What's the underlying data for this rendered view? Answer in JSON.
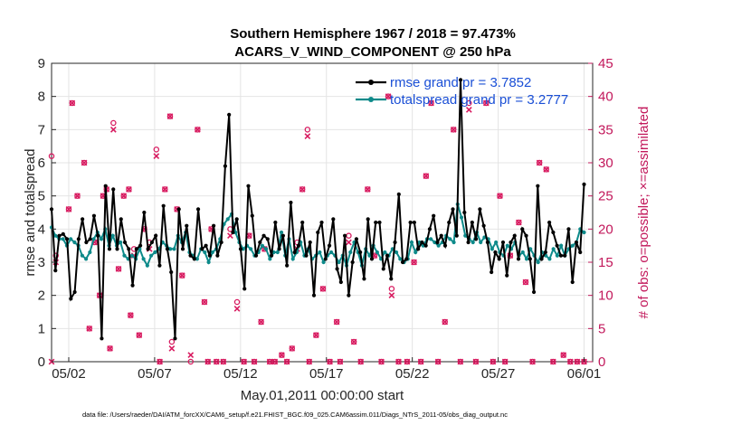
{
  "chart_data": {
    "type": "line",
    "title_lines": [
      "Southern Hemisphere 1967 / 2018 = 97.473%",
      "ACARS_V_WIND_COMPONENT @ 250 hPa"
    ],
    "xlabel": "May.01,2011 00:00:00 start",
    "ylabel": "rmse and totalspread",
    "y2label": "# of obs: o=possible; ×=assimilated",
    "xlim": [
      0,
      31.5
    ],
    "ylim": [
      0,
      9
    ],
    "y2lim": [
      0,
      45
    ],
    "xticks": [
      {
        "x": 1,
        "label": "05/02"
      },
      {
        "x": 6,
        "label": "05/07"
      },
      {
        "x": 11,
        "label": "05/12"
      },
      {
        "x": 16,
        "label": "05/17"
      },
      {
        "x": 21,
        "label": "05/22"
      },
      {
        "x": 26,
        "label": "05/27"
      },
      {
        "x": 31,
        "label": "06/01"
      }
    ],
    "yticks": [
      "0",
      "1",
      "2",
      "3",
      "4",
      "5",
      "6",
      "7",
      "8",
      "9"
    ],
    "y2ticks": [
      "0",
      "5",
      "10",
      "15",
      "20",
      "25",
      "30",
      "35",
      "40",
      "45"
    ],
    "legend": {
      "position": "top-right",
      "entries": [
        "rmse grand pr = 3.7852",
        "totalspread grand pr = 3.2777"
      ]
    },
    "colors": {
      "rmse": "#000000",
      "spread": "#0d8a8a",
      "obs": "#d81b60",
      "legend_text": "#1a4fd6",
      "grid": "#e4e4e4"
    },
    "series": [
      {
        "name": "rmse",
        "values": [
          4.6,
          2.75,
          3.8,
          3.85,
          3.7,
          1.9,
          2.1,
          3.7,
          4.3,
          3.6,
          3.7,
          4.4,
          3.8,
          0.7,
          5.3,
          3.4,
          5.2,
          3.4,
          4.3,
          3.6,
          3.4,
          2.3,
          3.4,
          3.5,
          4.5,
          3.4,
          3.6,
          3.8,
          2.9,
          4.7,
          3.4,
          2.7,
          0.7,
          4.6,
          3.4,
          4.1,
          3.2,
          3.1,
          4.6,
          3.4,
          3.5,
          3.2,
          4.1,
          3.2,
          3.6,
          5.9,
          7.45,
          3.9,
          4.3,
          3.4,
          2.2,
          5.3,
          4.4,
          3.2,
          3.6,
          3.8,
          3.7,
          3.2,
          4.2,
          3.4,
          3.8,
          2.9,
          4.8,
          3.3,
          3.5,
          4.2,
          3.2,
          3.6,
          2.0,
          3.9,
          4.2,
          3.1,
          3.5,
          4.3,
          2.8,
          2.4,
          3.8,
          2.0,
          3.0,
          3.7,
          3.3,
          2.5,
          4.3,
          3.1,
          4.2,
          4.2,
          2.8,
          3.2,
          2.5,
          3.6,
          5.05,
          3.0,
          3.1,
          4.2,
          4.2,
          3.4,
          3.6,
          3.5,
          4.0,
          4.4,
          3.6,
          3.8,
          3.5,
          4.2,
          4.6,
          3.8,
          8.5,
          4.5,
          3.6,
          4.2,
          3.7,
          4.6,
          4.1,
          3.6,
          2.7,
          3.3,
          3.1,
          3.6,
          2.6,
          3.6,
          3.8,
          3.1,
          4.0,
          3.8,
          3.1,
          2.1,
          5.3,
          3.1,
          3.3,
          4.2,
          3.9,
          3.5,
          3.2,
          3.2,
          4.0,
          2.4,
          3.6,
          3.3,
          5.35
        ]
      },
      {
        "name": "totalspread",
        "values": [
          4.05,
          3.8,
          3.7,
          3.7,
          3.5,
          3.7,
          3.6,
          3.5,
          3.2,
          3.1,
          3.3,
          3.7,
          3.9,
          3.7,
          4.0,
          3.5,
          3.8,
          3.5,
          3.6,
          3.2,
          3.1,
          3.2,
          3.1,
          3.4,
          3.1,
          2.9,
          3.2,
          3.3,
          3.4,
          3.6,
          3.5,
          3.4,
          3.4,
          3.8,
          3.6,
          3.9,
          3.3,
          3.2,
          3.1,
          3.4,
          3.3,
          3.0,
          3.3,
          3.4,
          3.7,
          4.15,
          4.3,
          4.45,
          3.9,
          3.6,
          3.4,
          3.5,
          3.4,
          3.2,
          3.3,
          3.5,
          3.4,
          3.1,
          3.3,
          3.3,
          3.9,
          3.2,
          3.7,
          3.1,
          3.3,
          3.6,
          3.2,
          3.4,
          3.1,
          3.2,
          3.3,
          3.0,
          3.2,
          3.3,
          3.2,
          3.0,
          3.2,
          2.9,
          3.3,
          3.6,
          3.3,
          2.9,
          3.4,
          3.2,
          3.5,
          3.3,
          3.1,
          3.3,
          3.2,
          3.4,
          3.3,
          3.1,
          3.0,
          3.1,
          3.6,
          3.3,
          3.6,
          3.5,
          3.7,
          3.7,
          3.6,
          3.5,
          3.6,
          3.8,
          3.7,
          3.6,
          4.75,
          4.35,
          3.8,
          3.7,
          3.6,
          3.9,
          3.6,
          3.75,
          3.7,
          3.4,
          3.6,
          3.3,
          3.2,
          3.5,
          3.4,
          3.6,
          3.2,
          3.3,
          3.1,
          3.4,
          3.2,
          3.0,
          3.3,
          3.2,
          3.1,
          3.4,
          3.2,
          3.5,
          3.2,
          3.4,
          3.5,
          3.6,
          4.0,
          3.9
        ]
      }
    ],
    "obs_possible": [
      [
        0.0,
        31
      ],
      [
        0.25,
        16
      ],
      [
        1.0,
        23
      ],
      [
        1.2,
        39
      ],
      [
        1.5,
        25
      ],
      [
        1.9,
        30
      ],
      [
        2.2,
        5
      ],
      [
        2.5,
        18
      ],
      [
        2.8,
        10
      ],
      [
        3.0,
        25
      ],
      [
        3.2,
        26
      ],
      [
        3.4,
        2
      ],
      [
        3.6,
        36
      ],
      [
        3.9,
        14
      ],
      [
        4.2,
        25
      ],
      [
        4.5,
        26
      ],
      [
        4.6,
        7
      ],
      [
        4.8,
        17
      ],
      [
        5.1,
        4
      ],
      [
        5.4,
        20
      ],
      [
        5.7,
        18
      ],
      [
        6.1,
        32
      ],
      [
        6.3,
        0
      ],
      [
        6.6,
        26
      ],
      [
        6.9,
        37
      ],
      [
        7.0,
        3
      ],
      [
        7.3,
        23
      ],
      [
        7.6,
        13
      ],
      [
        8.1,
        0
      ],
      [
        8.5,
        35
      ],
      [
        8.9,
        9
      ],
      [
        9.1,
        0
      ],
      [
        9.3,
        20
      ],
      [
        9.6,
        0
      ],
      [
        10.0,
        0
      ],
      [
        10.4,
        20
      ],
      [
        10.8,
        9
      ],
      [
        11.2,
        0
      ],
      [
        11.5,
        19
      ],
      [
        11.8,
        0
      ],
      [
        12.2,
        6
      ],
      [
        12.4,
        17
      ],
      [
        12.7,
        0
      ],
      [
        13.0,
        0
      ],
      [
        13.4,
        1
      ],
      [
        13.7,
        0
      ],
      [
        14.0,
        2
      ],
      [
        14.3,
        18
      ],
      [
        14.6,
        26
      ],
      [
        14.9,
        35
      ],
      [
        15.0,
        0
      ],
      [
        15.4,
        4
      ],
      [
        15.8,
        11
      ],
      [
        16.2,
        0
      ],
      [
        16.6,
        6
      ],
      [
        16.8,
        0
      ],
      [
        17.3,
        19
      ],
      [
        17.6,
        3
      ],
      [
        18.0,
        0
      ],
      [
        18.4,
        26
      ],
      [
        18.8,
        16
      ],
      [
        19.2,
        0
      ],
      [
        19.6,
        40
      ],
      [
        19.8,
        11
      ],
      [
        20.2,
        0
      ],
      [
        20.7,
        0
      ],
      [
        21.1,
        15
      ],
      [
        21.5,
        0
      ],
      [
        21.8,
        28
      ],
      [
        22.1,
        39
      ],
      [
        22.5,
        0
      ],
      [
        22.9,
        6
      ],
      [
        23.4,
        35
      ],
      [
        23.8,
        0
      ],
      [
        24.3,
        39
      ],
      [
        24.7,
        0
      ],
      [
        25.3,
        39
      ],
      [
        25.7,
        0
      ],
      [
        26.1,
        25
      ],
      [
        26.4,
        0
      ],
      [
        26.7,
        16
      ],
      [
        27.2,
        21
      ],
      [
        27.6,
        12
      ],
      [
        28.0,
        0
      ],
      [
        28.4,
        30
      ],
      [
        28.8,
        29
      ],
      [
        29.2,
        0
      ],
      [
        29.8,
        1
      ],
      [
        30.2,
        0
      ],
      [
        30.6,
        0
      ],
      [
        31.0,
        0
      ]
    ],
    "obs_assimilated": [
      [
        0.0,
        0
      ],
      [
        0.25,
        15
      ],
      [
        1.0,
        23
      ],
      [
        1.2,
        39
      ],
      [
        1.5,
        25
      ],
      [
        1.9,
        30
      ],
      [
        2.2,
        5
      ],
      [
        2.5,
        18
      ],
      [
        2.8,
        10
      ],
      [
        3.0,
        25
      ],
      [
        3.2,
        26
      ],
      [
        3.4,
        2
      ],
      [
        3.6,
        35
      ],
      [
        3.9,
        14
      ],
      [
        4.2,
        25
      ],
      [
        4.5,
        26
      ],
      [
        4.6,
        7
      ],
      [
        4.8,
        16
      ],
      [
        5.1,
        4
      ],
      [
        5.4,
        20
      ],
      [
        5.7,
        17
      ],
      [
        6.1,
        31
      ],
      [
        6.3,
        0
      ],
      [
        6.6,
        26
      ],
      [
        6.9,
        37
      ],
      [
        7.0,
        2
      ],
      [
        7.3,
        23
      ],
      [
        7.6,
        13
      ],
      [
        8.1,
        1
      ],
      [
        8.5,
        35
      ],
      [
        8.9,
        9
      ],
      [
        9.1,
        0
      ],
      [
        9.3,
        20
      ],
      [
        9.6,
        0
      ],
      [
        10.0,
        0
      ],
      [
        10.4,
        19
      ],
      [
        10.8,
        8
      ],
      [
        11.2,
        0
      ],
      [
        11.5,
        19
      ],
      [
        11.8,
        0
      ],
      [
        12.2,
        6
      ],
      [
        12.4,
        17
      ],
      [
        12.7,
        0
      ],
      [
        13.0,
        0
      ],
      [
        13.4,
        1
      ],
      [
        13.7,
        0
      ],
      [
        14.0,
        2
      ],
      [
        14.3,
        17
      ],
      [
        14.6,
        26
      ],
      [
        14.9,
        34
      ],
      [
        15.0,
        0
      ],
      [
        15.4,
        4
      ],
      [
        15.8,
        11
      ],
      [
        16.2,
        0
      ],
      [
        16.6,
        6
      ],
      [
        16.8,
        0
      ],
      [
        17.3,
        18
      ],
      [
        17.6,
        3
      ],
      [
        18.0,
        0
      ],
      [
        18.4,
        26
      ],
      [
        18.8,
        16
      ],
      [
        19.2,
        0
      ],
      [
        19.6,
        40
      ],
      [
        19.8,
        10
      ],
      [
        20.2,
        0
      ],
      [
        20.7,
        0
      ],
      [
        21.1,
        15
      ],
      [
        21.5,
        0
      ],
      [
        21.8,
        28
      ],
      [
        22.1,
        39
      ],
      [
        22.5,
        0
      ],
      [
        22.9,
        6
      ],
      [
        23.4,
        35
      ],
      [
        23.8,
        0
      ],
      [
        24.3,
        38
      ],
      [
        24.7,
        0
      ],
      [
        25.3,
        39
      ],
      [
        25.7,
        0
      ],
      [
        26.1,
        25
      ],
      [
        26.4,
        0
      ],
      [
        26.7,
        16
      ],
      [
        27.2,
        21
      ],
      [
        27.6,
        12
      ],
      [
        28.0,
        0
      ],
      [
        28.4,
        30
      ],
      [
        28.8,
        29
      ],
      [
        29.2,
        0
      ],
      [
        29.8,
        1
      ],
      [
        30.2,
        0
      ],
      [
        30.6,
        0
      ],
      [
        31.0,
        0
      ]
    ],
    "footnote": "data file: /Users/raeder/DAI/ATM_forcXX/CAM6_setup/f.e21.FHIST_BGC.f09_025.CAM6assim.011/Diags_NTrS_2011-05/obs_diag_output.nc"
  }
}
